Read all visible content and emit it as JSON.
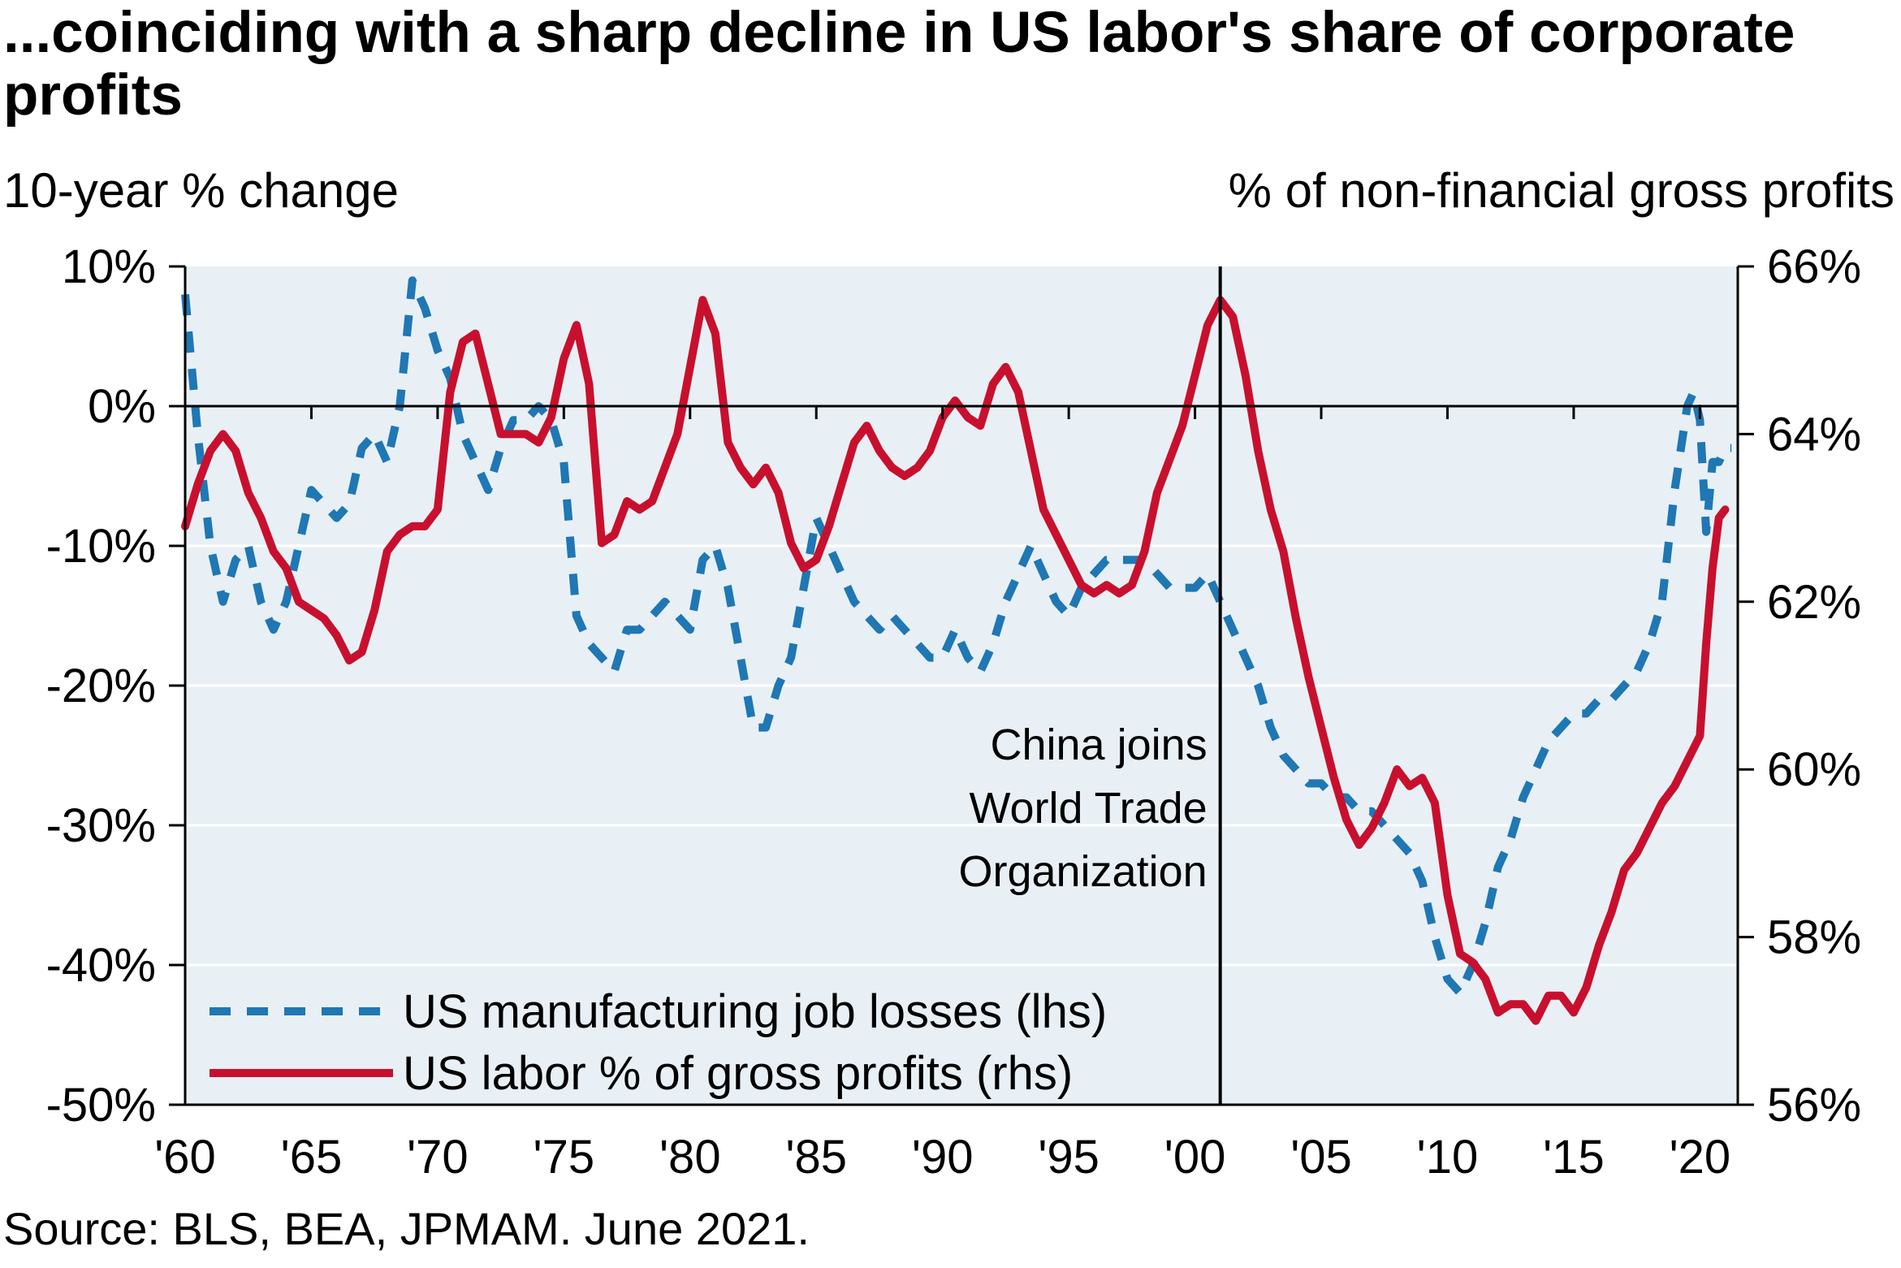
{
  "title": "...coinciding with a sharp decline in US labor's share of corporate profits",
  "lhs_axis_title": "10-year % change",
  "rhs_axis_title": "% of non-financial gross profits",
  "source": "Source: BLS, BEA, JPMAM. June 2021.",
  "colors": {
    "background": "#E8F0F5",
    "manufacturing": "#1F77B4",
    "labor": "#C8102E",
    "grid": "#FFFFFF",
    "axis": "#000000"
  },
  "chart_data": {
    "type": "line",
    "x_range": [
      1960,
      2021.5
    ],
    "x_ticks": [
      {
        "value": 1960,
        "label": "'60"
      },
      {
        "value": 1965,
        "label": "'65"
      },
      {
        "value": 1970,
        "label": "'70"
      },
      {
        "value": 1975,
        "label": "'75"
      },
      {
        "value": 1980,
        "label": "'80"
      },
      {
        "value": 1985,
        "label": "'85"
      },
      {
        "value": 1990,
        "label": "'90"
      },
      {
        "value": 1995,
        "label": "'95"
      },
      {
        "value": 2000,
        "label": "'00"
      },
      {
        "value": 2005,
        "label": "'05"
      },
      {
        "value": 2010,
        "label": "'10"
      },
      {
        "value": 2015,
        "label": "'15"
      },
      {
        "value": 2020,
        "label": "'20"
      }
    ],
    "y_left": {
      "range": [
        -50,
        10
      ],
      "ticks": [
        {
          "value": 10,
          "label": "10%"
        },
        {
          "value": 0,
          "label": "0%"
        },
        {
          "value": -10,
          "label": "-10%"
        },
        {
          "value": -20,
          "label": "-20%"
        },
        {
          "value": -30,
          "label": "-30%"
        },
        {
          "value": -40,
          "label": "-40%"
        },
        {
          "value": -50,
          "label": "-50%"
        }
      ]
    },
    "y_right": {
      "range": [
        56,
        66
      ],
      "ticks": [
        {
          "value": 66,
          "label": "66%"
        },
        {
          "value": 64,
          "label": "64%"
        },
        {
          "value": 62,
          "label": "62%"
        },
        {
          "value": 60,
          "label": "60%"
        },
        {
          "value": 58,
          "label": "58%"
        },
        {
          "value": 56,
          "label": "56%"
        }
      ]
    },
    "grid": true,
    "legend_position": "bottom-left",
    "annotation": {
      "x": 2001,
      "lines": [
        "China joins",
        "World Trade",
        "Organization"
      ]
    },
    "series": [
      {
        "name": "US manufacturing job losses (lhs)",
        "axis": "left",
        "style": "dashed",
        "color": "#1F77B4",
        "points": [
          [
            1960,
            8
          ],
          [
            1960.5,
            -2
          ],
          [
            1961,
            -10
          ],
          [
            1961.5,
            -14
          ],
          [
            1962,
            -11
          ],
          [
            1962.5,
            -10
          ],
          [
            1963,
            -14
          ],
          [
            1963.5,
            -16
          ],
          [
            1964,
            -14
          ],
          [
            1964.5,
            -10
          ],
          [
            1965,
            -6
          ],
          [
            1965.5,
            -7
          ],
          [
            1966,
            -8
          ],
          [
            1966.5,
            -7
          ],
          [
            1967,
            -3
          ],
          [
            1967.5,
            -2
          ],
          [
            1968,
            -4
          ],
          [
            1968.5,
            0
          ],
          [
            1969,
            9
          ],
          [
            1969.5,
            7
          ],
          [
            1970,
            4
          ],
          [
            1970.5,
            2
          ],
          [
            1971,
            -2
          ],
          [
            1971.5,
            -4
          ],
          [
            1972,
            -6
          ],
          [
            1972.5,
            -3
          ],
          [
            1973,
            -1
          ],
          [
            1973.5,
            -1
          ],
          [
            1974,
            0
          ],
          [
            1974.5,
            -1
          ],
          [
            1975,
            -4
          ],
          [
            1975.5,
            -15
          ],
          [
            1976,
            -17
          ],
          [
            1976.5,
            -18
          ],
          [
            1977,
            -19
          ],
          [
            1977.5,
            -16
          ],
          [
            1978,
            -16
          ],
          [
            1978.5,
            -15
          ],
          [
            1979,
            -14
          ],
          [
            1979.5,
            -15
          ],
          [
            1980,
            -16
          ],
          [
            1980.5,
            -11
          ],
          [
            1981,
            -10
          ],
          [
            1981.5,
            -13
          ],
          [
            1982,
            -18
          ],
          [
            1982.5,
            -23
          ],
          [
            1983,
            -23
          ],
          [
            1983.5,
            -20
          ],
          [
            1984,
            -18
          ],
          [
            1984.5,
            -13
          ],
          [
            1985,
            -8
          ],
          [
            1985.5,
            -10
          ],
          [
            1986,
            -12
          ],
          [
            1986.5,
            -14
          ],
          [
            1987,
            -15
          ],
          [
            1987.5,
            -16
          ],
          [
            1988,
            -15
          ],
          [
            1988.5,
            -16
          ],
          [
            1989,
            -17
          ],
          [
            1989.5,
            -18
          ],
          [
            1990,
            -18
          ],
          [
            1990.5,
            -16
          ],
          [
            1991,
            -18
          ],
          [
            1991.5,
            -19
          ],
          [
            1992,
            -17
          ],
          [
            1992.5,
            -14
          ],
          [
            1993,
            -12
          ],
          [
            1993.5,
            -10
          ],
          [
            1994,
            -12
          ],
          [
            1994.5,
            -14
          ],
          [
            1995,
            -15
          ],
          [
            1995.5,
            -13
          ],
          [
            1996,
            -12
          ],
          [
            1996.5,
            -11
          ],
          [
            1997,
            -11
          ],
          [
            1997.5,
            -11
          ],
          [
            1998,
            -11
          ],
          [
            1998.5,
            -12
          ],
          [
            1999,
            -13
          ],
          [
            1999.5,
            -13
          ],
          [
            2000,
            -13
          ],
          [
            2000.5,
            -12
          ],
          [
            2001,
            -14
          ],
          [
            2001.5,
            -16
          ],
          [
            2002,
            -18
          ],
          [
            2002.5,
            -20
          ],
          [
            2003,
            -23
          ],
          [
            2003.5,
            -25
          ],
          [
            2004,
            -26
          ],
          [
            2004.5,
            -27
          ],
          [
            2005,
            -27
          ],
          [
            2005.5,
            -28
          ],
          [
            2006,
            -28
          ],
          [
            2006.5,
            -29
          ],
          [
            2007,
            -29
          ],
          [
            2007.5,
            -30
          ],
          [
            2008,
            -31
          ],
          [
            2008.5,
            -32
          ],
          [
            2009,
            -34
          ],
          [
            2009.5,
            -38
          ],
          [
            2010,
            -41
          ],
          [
            2010.5,
            -42
          ],
          [
            2011,
            -40
          ],
          [
            2011.5,
            -37
          ],
          [
            2012,
            -33
          ],
          [
            2012.5,
            -31
          ],
          [
            2013,
            -28
          ],
          [
            2013.5,
            -26
          ],
          [
            2014,
            -24
          ],
          [
            2014.5,
            -23
          ],
          [
            2015,
            -22
          ],
          [
            2015.5,
            -22
          ],
          [
            2016,
            -21
          ],
          [
            2016.5,
            -21
          ],
          [
            2017,
            -20
          ],
          [
            2017.5,
            -19
          ],
          [
            2018,
            -17
          ],
          [
            2018.5,
            -14
          ],
          [
            2019,
            -6
          ],
          [
            2019.5,
            0
          ],
          [
            2019.75,
            1
          ],
          [
            2020,
            -1
          ],
          [
            2020.25,
            -9
          ],
          [
            2020.5,
            -4
          ],
          [
            2020.75,
            -4
          ],
          [
            2021,
            -3
          ],
          [
            2021.25,
            -3
          ]
        ]
      },
      {
        "name": "US labor % of gross profits (rhs)",
        "axis": "right",
        "style": "solid",
        "color": "#C8102E",
        "points": [
          [
            1960,
            62.9
          ],
          [
            1960.5,
            63.4
          ],
          [
            1961,
            63.8
          ],
          [
            1961.5,
            64.0
          ],
          [
            1962,
            63.8
          ],
          [
            1962.5,
            63.3
          ],
          [
            1963,
            63.0
          ],
          [
            1963.5,
            62.6
          ],
          [
            1964,
            62.4
          ],
          [
            1964.5,
            62.0
          ],
          [
            1965,
            61.9
          ],
          [
            1965.5,
            61.8
          ],
          [
            1966,
            61.6
          ],
          [
            1966.5,
            61.3
          ],
          [
            1967,
            61.4
          ],
          [
            1967.5,
            61.9
          ],
          [
            1968,
            62.6
          ],
          [
            1968.5,
            62.8
          ],
          [
            1969,
            62.9
          ],
          [
            1969.5,
            62.9
          ],
          [
            1970,
            63.1
          ],
          [
            1970.5,
            64.5
          ],
          [
            1971,
            65.1
          ],
          [
            1971.5,
            65.2
          ],
          [
            1972,
            64.6
          ],
          [
            1972.5,
            64.0
          ],
          [
            1973,
            64.0
          ],
          [
            1973.5,
            64.0
          ],
          [
            1974,
            63.9
          ],
          [
            1974.5,
            64.2
          ],
          [
            1975,
            64.9
          ],
          [
            1975.5,
            65.3
          ],
          [
            1976,
            64.6
          ],
          [
            1976.5,
            62.7
          ],
          [
            1977,
            62.8
          ],
          [
            1977.5,
            63.2
          ],
          [
            1978,
            63.1
          ],
          [
            1978.5,
            63.2
          ],
          [
            1979,
            63.6
          ],
          [
            1979.5,
            64.0
          ],
          [
            1980,
            64.8
          ],
          [
            1980.5,
            65.6
          ],
          [
            1981,
            65.2
          ],
          [
            1981.5,
            63.9
          ],
          [
            1982,
            63.6
          ],
          [
            1982.5,
            63.4
          ],
          [
            1983,
            63.6
          ],
          [
            1983.5,
            63.3
          ],
          [
            1984,
            62.7
          ],
          [
            1984.5,
            62.4
          ],
          [
            1985,
            62.5
          ],
          [
            1985.5,
            62.9
          ],
          [
            1986,
            63.4
          ],
          [
            1986.5,
            63.9
          ],
          [
            1987,
            64.1
          ],
          [
            1987.5,
            63.8
          ],
          [
            1988,
            63.6
          ],
          [
            1988.5,
            63.5
          ],
          [
            1989,
            63.6
          ],
          [
            1989.5,
            63.8
          ],
          [
            1990,
            64.2
          ],
          [
            1990.5,
            64.4
          ],
          [
            1991,
            64.2
          ],
          [
            1991.5,
            64.1
          ],
          [
            1992,
            64.6
          ],
          [
            1992.5,
            64.8
          ],
          [
            1993,
            64.5
          ],
          [
            1993.5,
            63.8
          ],
          [
            1994,
            63.1
          ],
          [
            1994.5,
            62.8
          ],
          [
            1995,
            62.5
          ],
          [
            1995.5,
            62.2
          ],
          [
            1996,
            62.1
          ],
          [
            1996.5,
            62.2
          ],
          [
            1997,
            62.1
          ],
          [
            1997.5,
            62.2
          ],
          [
            1998,
            62.6
          ],
          [
            1998.5,
            63.3
          ],
          [
            1999,
            63.7
          ],
          [
            1999.5,
            64.1
          ],
          [
            2000,
            64.7
          ],
          [
            2000.5,
            65.3
          ],
          [
            2001,
            65.6
          ],
          [
            2001.5,
            65.4
          ],
          [
            2002,
            64.7
          ],
          [
            2002.5,
            63.8
          ],
          [
            2003,
            63.1
          ],
          [
            2003.5,
            62.6
          ],
          [
            2004,
            61.8
          ],
          [
            2004.5,
            61.1
          ],
          [
            2005,
            60.5
          ],
          [
            2005.5,
            59.9
          ],
          [
            2006,
            59.4
          ],
          [
            2006.5,
            59.1
          ],
          [
            2007,
            59.3
          ],
          [
            2007.5,
            59.6
          ],
          [
            2008,
            60.0
          ],
          [
            2008.5,
            59.8
          ],
          [
            2009,
            59.9
          ],
          [
            2009.5,
            59.6
          ],
          [
            2010,
            58.5
          ],
          [
            2010.5,
            57.8
          ],
          [
            2011,
            57.7
          ],
          [
            2011.5,
            57.5
          ],
          [
            2012,
            57.1
          ],
          [
            2012.5,
            57.2
          ],
          [
            2013,
            57.2
          ],
          [
            2013.5,
            57.0
          ],
          [
            2014,
            57.3
          ],
          [
            2014.5,
            57.3
          ],
          [
            2015,
            57.1
          ],
          [
            2015.5,
            57.4
          ],
          [
            2016,
            57.9
          ],
          [
            2016.5,
            58.3
          ],
          [
            2017,
            58.8
          ],
          [
            2017.5,
            59.0
          ],
          [
            2018,
            59.3
          ],
          [
            2018.5,
            59.6
          ],
          [
            2019,
            59.8
          ],
          [
            2019.5,
            60.1
          ],
          [
            2020,
            60.4
          ],
          [
            2020.25,
            61.5
          ],
          [
            2020.5,
            62.4
          ],
          [
            2020.75,
            63.0
          ],
          [
            2021,
            63.1
          ]
        ]
      }
    ]
  }
}
